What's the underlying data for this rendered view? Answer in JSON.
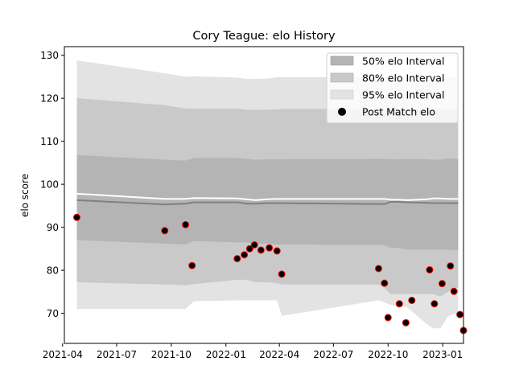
{
  "chart_data": {
    "type": "scatter",
    "title": "Cory Teague: elo History",
    "xlabel": "",
    "ylabel": "elo score",
    "xlim": [
      "2021-04-04",
      "2023-02-05"
    ],
    "ylim": [
      63,
      132
    ],
    "xticks": [
      "2021-04",
      "2021-07",
      "2021-10",
      "2022-01",
      "2022-04",
      "2022-07",
      "2022-10",
      "2023-01"
    ],
    "yticks": [
      70,
      80,
      90,
      100,
      110,
      120,
      130
    ],
    "grid": false,
    "legend": {
      "position": "top-right",
      "entries": [
        "50% elo Interval",
        "80% elo Interval",
        "95% elo Interval",
        "Post Match elo"
      ]
    },
    "colors": {
      "band_50": "#b4b4b4",
      "band_80": "#c9c9c9",
      "band_95": "#e3e3e3",
      "median_line": "#808080",
      "mean_line": "#ffffff",
      "point_fill": "#000000",
      "point_edge": "#ff0000"
    },
    "intervals": {
      "dates": [
        "2021-04-25",
        "2021-09-20",
        "2021-10-25",
        "2021-11-08",
        "2022-01-20",
        "2022-02-05",
        "2022-02-20",
        "2022-03-10",
        "2022-03-28",
        "2022-04-05",
        "2022-09-15",
        "2022-09-25",
        "2022-10-05",
        "2022-10-20",
        "2022-11-01",
        "2022-12-05",
        "2022-12-15",
        "2022-12-28",
        "2023-01-10",
        "2023-01-20",
        "2023-01-27"
      ],
      "p95_low": [
        71,
        71,
        71,
        72.8,
        73,
        73,
        73,
        73,
        73,
        69.4,
        73,
        72.5,
        72,
        71.5,
        71.5,
        67.5,
        66.5,
        66.5,
        69.3,
        69.8,
        70
      ],
      "p80_low": [
        77.2,
        76.7,
        76.5,
        76.8,
        77.8,
        77.8,
        77.2,
        77.2,
        77,
        76.7,
        76.7,
        75.8,
        74.5,
        74.4,
        74.5,
        74.5,
        74.5,
        73.9,
        75,
        75.8,
        76
      ],
      "p50_low": [
        87,
        86.2,
        86,
        86.8,
        86.5,
        86.5,
        86.2,
        86.2,
        86,
        86,
        85.9,
        85.8,
        85.2,
        85.2,
        84.8,
        84.8,
        84.8,
        84.8,
        84.8,
        84.7,
        84.7
      ],
      "median": [
        96.3,
        95.3,
        95.5,
        95.8,
        95.8,
        95.5,
        95.5,
        95.6,
        95.6,
        95.6,
        95.4,
        95.4,
        95.9,
        95.9,
        95.8,
        95.7,
        95.6,
        95.6,
        95.6,
        95.6,
        95.6
      ],
      "mean": [
        97.8,
        96.6,
        96.6,
        96.8,
        96.7,
        96.5,
        96.3,
        96.5,
        96.6,
        96.6,
        96.6,
        96.6,
        96.4,
        96.4,
        96.3,
        96.5,
        96.7,
        96.7,
        96.6,
        96.6,
        96.6
      ],
      "p50_high": [
        106.8,
        105.7,
        105.5,
        106.1,
        106.1,
        105.9,
        105.7,
        105.8,
        105.8,
        105.8,
        105.9,
        105.9,
        105.8,
        105.8,
        105.9,
        105.8,
        105.7,
        105.7,
        106,
        105.9,
        105.9
      ],
      "p80_high": [
        120,
        118.4,
        117.6,
        117.6,
        117.6,
        117.3,
        117.3,
        117.3,
        117.4,
        117.5,
        117.5,
        117.5,
        117.5,
        117.5,
        117.5,
        117.5,
        117.5,
        117.5,
        117.5,
        117.5,
        117.5
      ],
      "p95_high": [
        128.8,
        125.8,
        125,
        125.1,
        124.8,
        124.5,
        124.5,
        124.6,
        124.9,
        124.9,
        124.9,
        124.9,
        124.9,
        124.9,
        124.9,
        124.9,
        124.9,
        124.9,
        124.9,
        124.9,
        124.9
      ]
    },
    "points": [
      {
        "x": "2021-04-25",
        "y": 92.3
      },
      {
        "x": "2021-09-20",
        "y": 89.2
      },
      {
        "x": "2021-10-25",
        "y": 90.6
      },
      {
        "x": "2021-11-05",
        "y": 81.1
      },
      {
        "x": "2022-01-20",
        "y": 82.7
      },
      {
        "x": "2022-02-01",
        "y": 83.6
      },
      {
        "x": "2022-02-10",
        "y": 85
      },
      {
        "x": "2022-02-18",
        "y": 85.9
      },
      {
        "x": "2022-03-01",
        "y": 84.7
      },
      {
        "x": "2022-03-15",
        "y": 85.2
      },
      {
        "x": "2022-03-28",
        "y": 84.5
      },
      {
        "x": "2022-04-05",
        "y": 79.1
      },
      {
        "x": "2022-09-15",
        "y": 80.4
      },
      {
        "x": "2022-09-25",
        "y": 77
      },
      {
        "x": "2022-10-01",
        "y": 69
      },
      {
        "x": "2022-10-20",
        "y": 72.2
      },
      {
        "x": "2022-10-31",
        "y": 67.8
      },
      {
        "x": "2022-11-10",
        "y": 73
      },
      {
        "x": "2022-12-10",
        "y": 80.1
      },
      {
        "x": "2022-12-18",
        "y": 72.2
      },
      {
        "x": "2022-12-31",
        "y": 76.9
      },
      {
        "x": "2023-01-14",
        "y": 81
      },
      {
        "x": "2023-01-20",
        "y": 75.1
      },
      {
        "x": "2023-01-30",
        "y": 69.7
      },
      {
        "x": "2023-02-05",
        "y": 66
      }
    ]
  }
}
